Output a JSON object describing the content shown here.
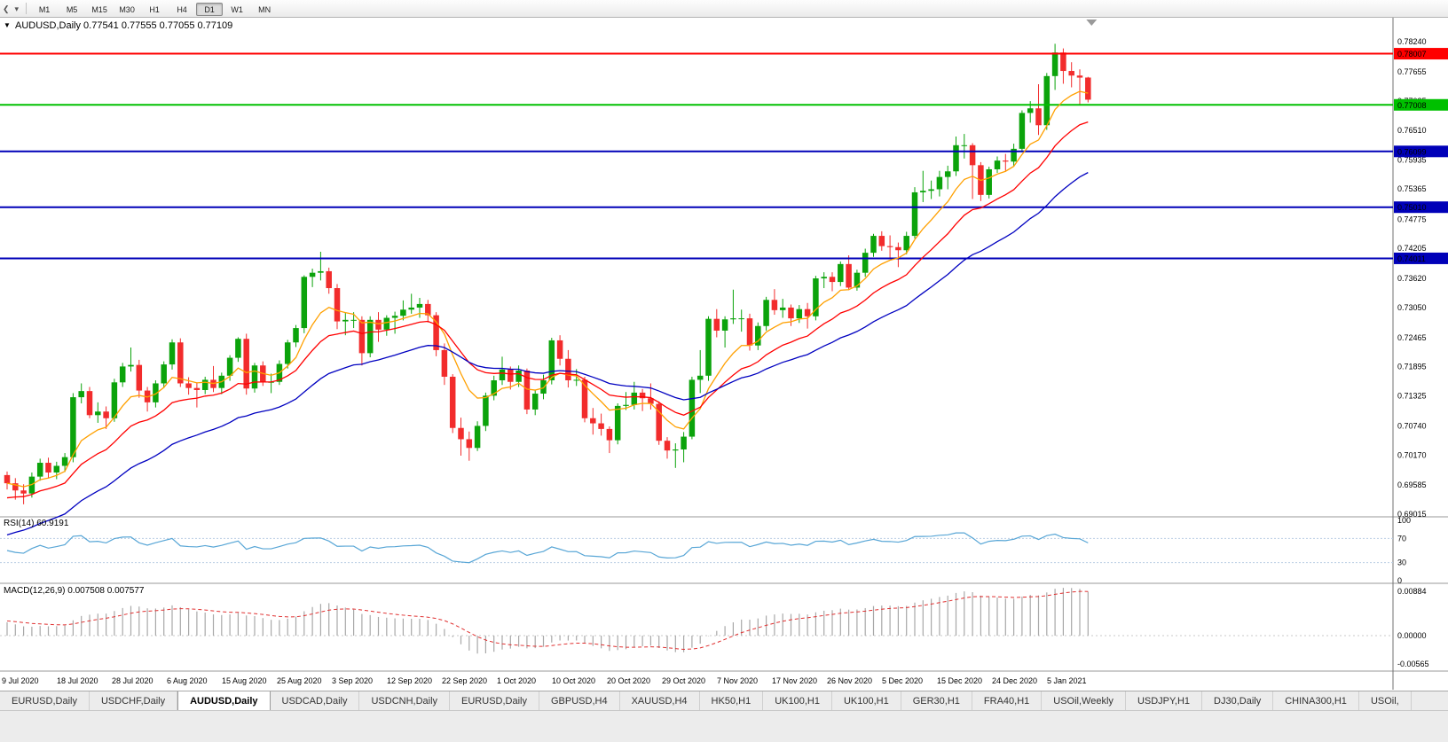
{
  "icons": {
    "overflow": "❮",
    "dropdown": "▾",
    "one_click": "▼"
  },
  "toolbar": {
    "timeframes": [
      "M1",
      "M5",
      "M15",
      "M30",
      "H1",
      "H4",
      "D1",
      "W1",
      "MN"
    ],
    "active_timeframe": "D1"
  },
  "chart": {
    "symbol_label": "AUDUSD,Daily",
    "ohlc_text": "0.77541 0.77555 0.77055 0.77109"
  },
  "chart_data": {
    "type": "candlestick",
    "title": "AUDUSD,Daily",
    "x_labels": [
      "9 Jul 2020",
      "18 Jul 2020",
      "28 Jul 2020",
      "6 Aug 2020",
      "15 Aug 2020",
      "25 Aug 2020",
      "3 Sep 2020",
      "12 Sep 2020",
      "22 Sep 2020",
      "1 Oct 2020",
      "10 Oct 2020",
      "20 Oct 2020",
      "29 Oct 2020",
      "7 Nov 2020",
      "17 Nov 2020",
      "26 Nov 2020",
      "5 Dec 2020",
      "15 Dec 2020",
      "24 Dec 2020",
      "5 Jan 2021"
    ],
    "y_ticks": [
      "0.78240",
      "0.77655",
      "0.77085",
      "0.76510",
      "0.75935",
      "0.75365",
      "0.74775",
      "0.74205",
      "0.73620",
      "0.73050",
      "0.72465",
      "0.71895",
      "0.71325",
      "0.70740",
      "0.70170",
      "0.69585",
      "0.69015"
    ],
    "y_range": {
      "top": 0.78709,
      "bottom": 0.68982
    },
    "colors": {
      "up": "#0ba30b",
      "down": "#f22c2c",
      "background": "#ffffff",
      "axis_text": "#000000"
    },
    "hlines": [
      {
        "price": 0.78007,
        "label": "0.78007",
        "color": "#ff0000"
      },
      {
        "price": 0.77008,
        "label": "0.77008",
        "color": "#00c000"
      },
      {
        "price": 0.76099,
        "label": "0.76099",
        "color": "#0000b8"
      },
      {
        "price": 0.7501,
        "label": "0.75010",
        "color": "#0000b8"
      },
      {
        "price": 0.74011,
        "label": "0.74011",
        "color": "#0000b8"
      }
    ],
    "moving_averages": [
      {
        "name": "fast",
        "period": 8,
        "seed": null,
        "color": "#ffa000"
      },
      {
        "name": "mid",
        "period": 17,
        "seed": 0.693,
        "color": "#ff0000"
      },
      {
        "name": "slow",
        "period": 34,
        "seed": 0.6855,
        "color": "#0000c0"
      }
    ],
    "candles": {
      "o": [
        0.6978,
        0.6962,
        0.6948,
        0.6942,
        0.6975,
        0.7002,
        0.6983,
        0.6996,
        0.7013,
        0.713,
        0.7142,
        0.7095,
        0.7102,
        0.7089,
        0.7159,
        0.719,
        0.7193,
        0.7143,
        0.712,
        0.7157,
        0.7194,
        0.7237,
        0.7157,
        0.7148,
        0.7144,
        0.7164,
        0.7148,
        0.7172,
        0.7207,
        0.7244,
        0.7147,
        0.7192,
        0.716,
        0.716,
        0.7195,
        0.7237,
        0.7265,
        0.7365,
        0.7373,
        0.7376,
        0.7343,
        0.7278,
        0.7281,
        0.7281,
        0.7216,
        0.7281,
        0.7262,
        0.7285,
        0.7289,
        0.7301,
        0.7305,
        0.7312,
        0.729,
        0.7222,
        0.717,
        0.707,
        0.7048,
        0.7031,
        0.7074,
        0.7133,
        0.7163,
        0.7184,
        0.716,
        0.7182,
        0.7106,
        0.7137,
        0.7163,
        0.7241,
        0.7205,
        0.7163,
        0.7164,
        0.7089,
        0.7079,
        0.7068,
        0.7046,
        0.7113,
        0.7115,
        0.7139,
        0.7128,
        0.7117,
        0.7045,
        0.7026,
        0.7028,
        0.7053,
        0.7164,
        0.7172,
        0.7283,
        0.726,
        0.7282,
        0.7284,
        0.7284,
        0.7231,
        0.7269,
        0.732,
        0.73,
        0.7305,
        0.7284,
        0.7302,
        0.7288,
        0.7362,
        0.7365,
        0.7355,
        0.739,
        0.7344,
        0.7373,
        0.7412,
        0.7445,
        0.7425,
        0.7423,
        0.7417,
        0.7445,
        0.753,
        0.7533,
        0.7536,
        0.756,
        0.7571,
        0.7622,
        0.7622,
        0.7583,
        0.7525,
        0.7575,
        0.7592,
        0.759,
        0.7615,
        0.7685,
        0.7694,
        0.7661,
        0.7757,
        0.7803,
        0.7767,
        0.7758,
        0.77541
      ],
      "h": [
        0.6985,
        0.6972,
        0.696,
        0.6983,
        0.701,
        0.7012,
        0.7004,
        0.7021,
        0.7138,
        0.7157,
        0.715,
        0.712,
        0.7112,
        0.7166,
        0.7197,
        0.7227,
        0.7203,
        0.715,
        0.7163,
        0.72,
        0.7243,
        0.7245,
        0.7169,
        0.7159,
        0.717,
        0.7191,
        0.7178,
        0.7212,
        0.7247,
        0.7254,
        0.7197,
        0.72,
        0.7176,
        0.7202,
        0.7242,
        0.7271,
        0.7368,
        0.7381,
        0.7414,
        0.7383,
        0.7351,
        0.7295,
        0.7296,
        0.7288,
        0.7288,
        0.7296,
        0.729,
        0.7297,
        0.7319,
        0.7332,
        0.7324,
        0.732,
        0.7296,
        0.7235,
        0.7175,
        0.709,
        0.7063,
        0.7083,
        0.7139,
        0.7172,
        0.7209,
        0.719,
        0.7192,
        0.7186,
        0.7144,
        0.7174,
        0.7246,
        0.7251,
        0.7222,
        0.7185,
        0.717,
        0.7109,
        0.7098,
        0.7073,
        0.7118,
        0.714,
        0.716,
        0.7146,
        0.7157,
        0.7122,
        0.7052,
        0.704,
        0.7062,
        0.717,
        0.7222,
        0.7288,
        0.7302,
        0.7288,
        0.734,
        0.7301,
        0.7293,
        0.7276,
        0.7326,
        0.7341,
        0.7322,
        0.7311,
        0.731,
        0.7314,
        0.7367,
        0.7374,
        0.7374,
        0.7395,
        0.7407,
        0.7379,
        0.742,
        0.7449,
        0.7454,
        0.7446,
        0.7432,
        0.7453,
        0.754,
        0.7572,
        0.7553,
        0.7572,
        0.7582,
        0.7639,
        0.7644,
        0.7626,
        0.7589,
        0.758,
        0.76,
        0.7605,
        0.7625,
        0.769,
        0.7708,
        0.7741,
        0.7763,
        0.782,
        0.7811,
        0.7784,
        0.777,
        0.77555
      ],
      "l": [
        0.695,
        0.693,
        0.6921,
        0.6934,
        0.6967,
        0.6972,
        0.697,
        0.6984,
        0.7003,
        0.7118,
        0.7089,
        0.708,
        0.7068,
        0.7082,
        0.715,
        0.718,
        0.7129,
        0.7102,
        0.711,
        0.7148,
        0.7184,
        0.715,
        0.7135,
        0.711,
        0.7136,
        0.714,
        0.7136,
        0.7162,
        0.7199,
        0.7135,
        0.7139,
        0.7152,
        0.7138,
        0.7154,
        0.7186,
        0.7228,
        0.7255,
        0.7345,
        0.7358,
        0.7332,
        0.7263,
        0.7251,
        0.7265,
        0.7192,
        0.7208,
        0.7238,
        0.725,
        0.7254,
        0.728,
        0.7293,
        0.7285,
        0.7276,
        0.721,
        0.7154,
        0.706,
        0.7016,
        0.7006,
        0.7025,
        0.7064,
        0.7124,
        0.7154,
        0.7145,
        0.715,
        0.7097,
        0.7095,
        0.7126,
        0.7155,
        0.7192,
        0.7149,
        0.7152,
        0.7081,
        0.7057,
        0.7055,
        0.7021,
        0.7038,
        0.7105,
        0.7106,
        0.7103,
        0.7106,
        0.7037,
        0.701,
        0.6992,
        0.7003,
        0.7048,
        0.7138,
        0.7162,
        0.7247,
        0.7227,
        0.7273,
        0.7258,
        0.7221,
        0.7222,
        0.726,
        0.7291,
        0.7285,
        0.7269,
        0.7275,
        0.7264,
        0.728,
        0.7343,
        0.7337,
        0.7347,
        0.7339,
        0.7338,
        0.7365,
        0.7404,
        0.7416,
        0.7401,
        0.7384,
        0.7409,
        0.744,
        0.7511,
        0.7517,
        0.7522,
        0.7536,
        0.7562,
        0.7596,
        0.7517,
        0.7513,
        0.7518,
        0.7568,
        0.7572,
        0.758,
        0.7608,
        0.7666,
        0.7642,
        0.7652,
        0.773,
        0.7742,
        0.7735,
        0.77,
        0.77055
      ],
      "c": [
        0.6962,
        0.6948,
        0.6942,
        0.6975,
        0.7002,
        0.6983,
        0.6996,
        0.7013,
        0.713,
        0.7142,
        0.7095,
        0.7102,
        0.7089,
        0.7159,
        0.719,
        0.7193,
        0.7143,
        0.712,
        0.7157,
        0.7194,
        0.7237,
        0.7157,
        0.7148,
        0.7144,
        0.7164,
        0.7148,
        0.7172,
        0.7207,
        0.7244,
        0.7147,
        0.7192,
        0.716,
        0.716,
        0.7195,
        0.7237,
        0.7265,
        0.7365,
        0.7373,
        0.7376,
        0.7343,
        0.7278,
        0.7281,
        0.7281,
        0.7216,
        0.7281,
        0.7262,
        0.7285,
        0.7289,
        0.7301,
        0.7305,
        0.7312,
        0.729,
        0.7222,
        0.717,
        0.707,
        0.7048,
        0.7031,
        0.7074,
        0.7133,
        0.7163,
        0.7184,
        0.716,
        0.7182,
        0.7106,
        0.7137,
        0.7163,
        0.7241,
        0.7205,
        0.7163,
        0.7164,
        0.7089,
        0.7079,
        0.7068,
        0.7046,
        0.7113,
        0.7115,
        0.7139,
        0.7128,
        0.7117,
        0.7045,
        0.7026,
        0.7028,
        0.7053,
        0.7164,
        0.7172,
        0.7283,
        0.726,
        0.7282,
        0.7284,
        0.7284,
        0.7231,
        0.7269,
        0.732,
        0.73,
        0.7305,
        0.7284,
        0.7302,
        0.7288,
        0.7362,
        0.7365,
        0.7355,
        0.739,
        0.7344,
        0.7373,
        0.7412,
        0.7445,
        0.7425,
        0.7423,
        0.7417,
        0.7445,
        0.753,
        0.7533,
        0.7536,
        0.756,
        0.7571,
        0.7622,
        0.7622,
        0.7583,
        0.7525,
        0.7575,
        0.7592,
        0.759,
        0.7615,
        0.7685,
        0.7694,
        0.7661,
        0.7757,
        0.7803,
        0.7767,
        0.7758,
        0.7754,
        0.77109
      ]
    },
    "indicators": {
      "rsi": {
        "label": "RSI(14)",
        "value": "60.9191",
        "period": 14,
        "levels": [
          {
            "label": "100",
            "value": 100
          },
          {
            "label": "70",
            "value": 70
          },
          {
            "label": "30",
            "value": 30
          },
          {
            "label": "0",
            "value": 0
          }
        ],
        "level_lines": [
          70,
          30
        ],
        "line_color": "#58a6d6",
        "level_line_color": "#b9cde4"
      },
      "macd": {
        "label": "MACD(12,26,9)",
        "values_text": "0.007508 0.007577",
        "fast": 12,
        "slow": 26,
        "signal": 9,
        "ticks": [
          {
            "label": "0.00884",
            "value": 0.00884
          },
          {
            "label": "0.00000",
            "value": 0
          },
          {
            "label": "-0.00565",
            "value": -0.00565
          }
        ],
        "max": 0.00884,
        "min": -0.00565,
        "bar_color": "#a8a8a8",
        "signal_color": "#e03030",
        "zero_line_color": "#c8c8c8"
      }
    }
  },
  "tabs": {
    "items": [
      "EURUSD,Daily",
      "USDCHF,Daily",
      "AUDUSD,Daily",
      "USDCAD,Daily",
      "USDCNH,Daily",
      "EURUSD,Daily",
      "GBPUSD,H4",
      "XAUUSD,H4",
      "HK50,H1",
      "UK100,H1",
      "UK100,H1",
      "GER30,H1",
      "FRA40,H1",
      "USOil,Weekly",
      "USDJPY,H1",
      "DJ30,Daily",
      "CHINA300,H1",
      "USOil,"
    ],
    "active_index": 2
  }
}
